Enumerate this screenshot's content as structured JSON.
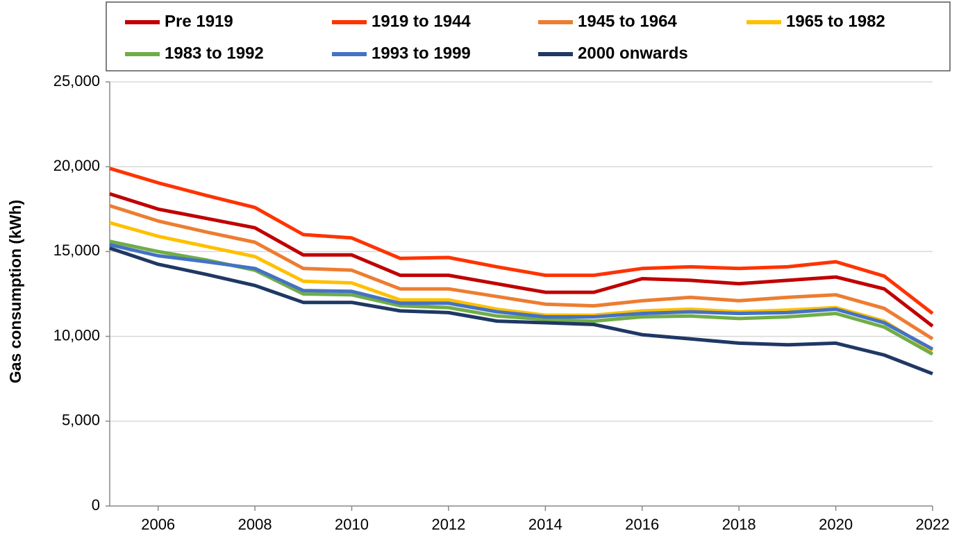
{
  "chart_data": {
    "type": "line",
    "y_label": "Gas consumption (kWh)",
    "x": [
      2005,
      2006,
      2007,
      2008,
      2009,
      2010,
      2011,
      2012,
      2013,
      2014,
      2015,
      2016,
      2017,
      2018,
      2019,
      2020,
      2021,
      2022
    ],
    "xlim": [
      2005,
      2022
    ],
    "xticks": [
      2006,
      2008,
      2010,
      2012,
      2014,
      2016,
      2018,
      2020,
      2022
    ],
    "ylim": [
      0,
      25000
    ],
    "yticks": [
      0,
      {
        "value": 5000,
        "label": "5,000"
      },
      {
        "value": 10000,
        "label": "10,000"
      },
      {
        "value": 15000,
        "label": "15,000"
      },
      {
        "value": 20000,
        "label": "20,000"
      },
      {
        "value": 25000,
        "label": "25,000"
      }
    ],
    "grid": true,
    "legend": "top",
    "series": [
      {
        "name": "Pre 1919",
        "color": "#c00000",
        "values": [
          18400,
          17500,
          16950,
          16400,
          14800,
          14800,
          13600,
          13600,
          13100,
          12600,
          12600,
          13400,
          13300,
          13100,
          13300,
          13500,
          12800,
          10600
        ]
      },
      {
        "name": "1919 to 1944",
        "color": "#ff3300",
        "values": [
          19900,
          19050,
          18300,
          17600,
          16000,
          15800,
          14600,
          14650,
          14100,
          13600,
          13600,
          14000,
          14100,
          14000,
          14100,
          14400,
          13550,
          11350
        ]
      },
      {
        "name": "1945 to 1964",
        "color": "#ed7d31",
        "values": [
          17700,
          16800,
          16150,
          15550,
          14000,
          13900,
          12800,
          12800,
          12350,
          11900,
          11800,
          12100,
          12300,
          12100,
          12300,
          12450,
          11650,
          9850
        ]
      },
      {
        "name": "1965 to 1982",
        "color": "#ffc000",
        "values": [
          16700,
          15900,
          15300,
          14700,
          13250,
          13150,
          12150,
          12150,
          11600,
          11250,
          11250,
          11500,
          11600,
          11450,
          11550,
          11700,
          10900,
          9150
        ]
      },
      {
        "name": "1983 to 1992",
        "color": "#70ad47",
        "values": [
          15600,
          15000,
          14500,
          13900,
          12500,
          12450,
          11800,
          11700,
          11200,
          11000,
          10900,
          11150,
          11200,
          11050,
          11150,
          11350,
          10550,
          8950
        ]
      },
      {
        "name": "1993 to 1999",
        "color": "#4472c4",
        "values": [
          15400,
          14750,
          14400,
          14000,
          12700,
          12650,
          11950,
          11950,
          11450,
          11150,
          11150,
          11350,
          11450,
          11350,
          11400,
          11600,
          10800,
          9250
        ]
      },
      {
        "name": "2000 onwards",
        "color": "#1f3864",
        "values": [
          15200,
          14250,
          13650,
          13000,
          12000,
          12000,
          11500,
          11400,
          10900,
          10800,
          10700,
          10100,
          9850,
          9600,
          9500,
          9600,
          8900,
          7800
        ]
      }
    ]
  }
}
